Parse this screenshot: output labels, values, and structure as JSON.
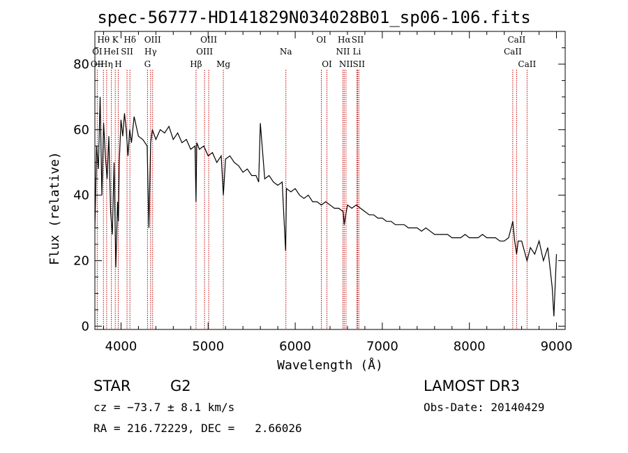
{
  "chart_data": {
    "type": "line",
    "title": "spec-56777-HD141829N034028B01_sp06-106.fits",
    "xlabel": "Wavelength (Å)",
    "ylabel": "Flux (relative)",
    "xlim": [
      3700,
      9100
    ],
    "ylim": [
      -1,
      90
    ],
    "x_ticks": [
      4000,
      5000,
      6000,
      7000,
      8000,
      9000
    ],
    "y_ticks": [
      0,
      20,
      40,
      60,
      80
    ],
    "grid": false,
    "series": [
      {
        "x": [
          3700,
          3720,
          3740,
          3760,
          3780,
          3800,
          3820,
          3840,
          3860,
          3880,
          3900,
          3920,
          3940,
          3960,
          3970,
          3980,
          4000,
          4020,
          4040,
          4060,
          4080,
          4100,
          4120,
          4150,
          4200,
          4250,
          4300,
          4320,
          4340,
          4360,
          4400,
          4450,
          4500,
          4550,
          4600,
          4650,
          4700,
          4750,
          4800,
          4850,
          4861,
          4870,
          4900,
          4950,
          5000,
          5050,
          5100,
          5150,
          5175,
          5200,
          5250,
          5300,
          5350,
          5400,
          5450,
          5500,
          5550,
          5580,
          5600,
          5650,
          5700,
          5750,
          5800,
          5850,
          5890,
          5900,
          5950,
          6000,
          6050,
          6100,
          6150,
          6200,
          6250,
          6300,
          6350,
          6400,
          6450,
          6500,
          6550,
          6563,
          6580,
          6600,
          6650,
          6700,
          6750,
          6800,
          6850,
          6900,
          6950,
          7000,
          7050,
          7100,
          7150,
          7200,
          7250,
          7300,
          7350,
          7400,
          7450,
          7500,
          7550,
          7600,
          7650,
          7700,
          7750,
          7800,
          7850,
          7900,
          7950,
          8000,
          8050,
          8100,
          8150,
          8200,
          8250,
          8300,
          8350,
          8400,
          8450,
          8498,
          8520,
          8542,
          8560,
          8600,
          8662,
          8700,
          8750,
          8800,
          8850,
          8900,
          8950,
          8970,
          9000
        ],
        "y": [
          30,
          55,
          48,
          70,
          40,
          62,
          52,
          45,
          58,
          35,
          28,
          50,
          18,
          38,
          32,
          50,
          63,
          58,
          65,
          60,
          52,
          60,
          56,
          64,
          58,
          57,
          55,
          30,
          56,
          60,
          57,
          60,
          59,
          61,
          57,
          59,
          56,
          57,
          54,
          55,
          38,
          56,
          54,
          55,
          52,
          53,
          50,
          52,
          40,
          51,
          52,
          50,
          49,
          47,
          48,
          46,
          46,
          44,
          62,
          45,
          46,
          44,
          43,
          44,
          23,
          42,
          41,
          42,
          40,
          39,
          40,
          38,
          38,
          37,
          38,
          37,
          36,
          36,
          35,
          31,
          34,
          37,
          36,
          37,
          36,
          35,
          34,
          34,
          33,
          33,
          32,
          32,
          31,
          31,
          31,
          30,
          30,
          30,
          29,
          30,
          29,
          28,
          28,
          28,
          28,
          27,
          27,
          27,
          28,
          27,
          27,
          27,
          28,
          27,
          27,
          27,
          26,
          26,
          27,
          32,
          26,
          22,
          26,
          26,
          20,
          24,
          22,
          26,
          20,
          24,
          12,
          3,
          22
        ]
      }
    ],
    "spectral_lines": {
      "top_row": [
        {
          "label": "Hθ",
          "x": 3798
        },
        {
          "label": "K",
          "x": 3934
        },
        {
          "label": "Hδ",
          "x": 4102
        },
        {
          "label": "OIII",
          "x": 4363
        },
        {
          "label": "OIII",
          "x": 5007
        },
        {
          "label": "OI",
          "x": 6300
        },
        {
          "label": "Hα",
          "x": 6563
        },
        {
          "label": "SII",
          "x": 6717
        },
        {
          "label": "CaII",
          "x": 8542
        }
      ],
      "middle_row": [
        {
          "label": "OI",
          "x": 3727
        },
        {
          "label": "HeI",
          "x": 3889
        },
        {
          "label": "SII",
          "x": 4069
        },
        {
          "label": "Hγ",
          "x": 4340
        },
        {
          "label": "OIII",
          "x": 4959
        },
        {
          "label": "Na",
          "x": 5893
        },
        {
          "label": "NII",
          "x": 6548
        },
        {
          "label": "Li",
          "x": 6708
        },
        {
          "label": "CaII",
          "x": 8498
        }
      ],
      "bottom_row": [
        {
          "label": "OII",
          "x": 3727
        },
        {
          "label": "Hη",
          "x": 3835
        },
        {
          "label": "H",
          "x": 3968
        },
        {
          "label": "G",
          "x": 4304
        },
        {
          "label": "Hβ",
          "x": 4861
        },
        {
          "label": "Mg",
          "x": 5175
        },
        {
          "label": "OI",
          "x": 6364
        },
        {
          "label": "NII",
          "x": 6583
        },
        {
          "label": "SII",
          "x": 6731
        },
        {
          "label": "CaII",
          "x": 8662
        }
      ]
    }
  },
  "footer": {
    "class_label": "STAR",
    "subclass": "G2",
    "survey": "LAMOST DR3",
    "cz": "cz = −73.7 ± 8.1 km/s",
    "obs_date": "Obs-Date: 20140429",
    "coords": "RA = 216.72229, DEC =   2.66026"
  },
  "colors": {
    "line_marker": "#c00000",
    "spectrum": "#000000"
  }
}
